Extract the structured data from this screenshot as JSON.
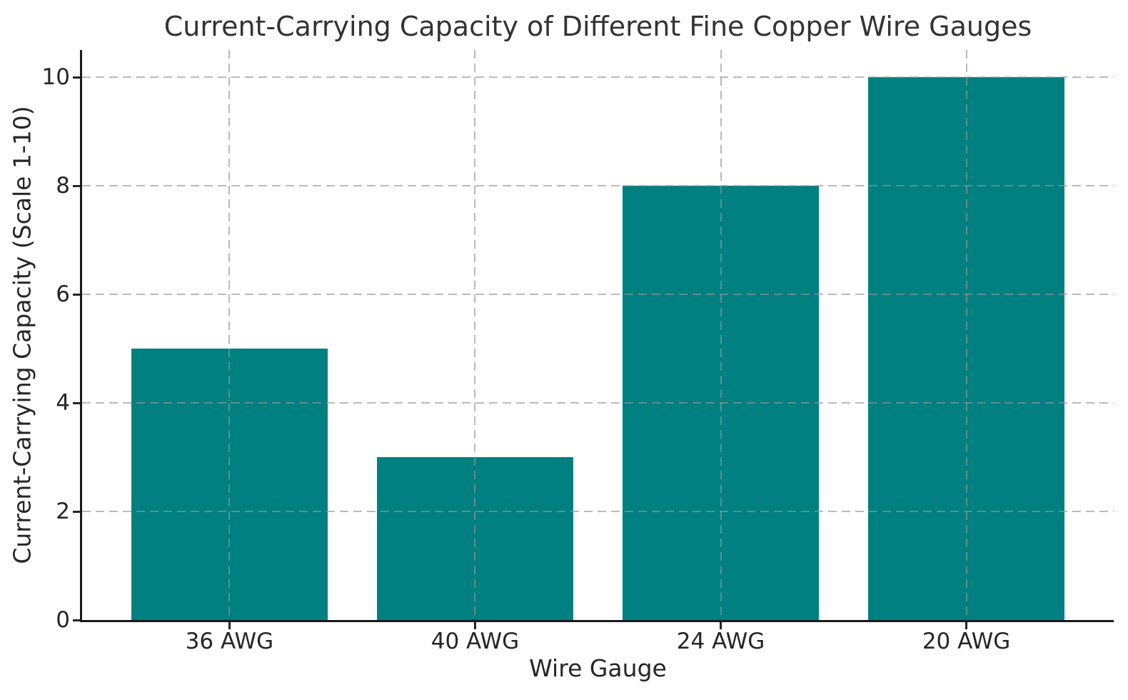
{
  "figure": {
    "background": "#ffffff",
    "text_color": "#262626",
    "title_color": "#333333"
  },
  "chart_data": {
    "type": "bar",
    "title": "Current-Carrying Capacity of Different Fine Copper Wire Gauges",
    "xlabel": "Wire Gauge",
    "ylabel": "Current-Carrying Capacity (Scale 1-10)",
    "categories": [
      "36 AWG",
      "40 AWG",
      "24 AWG",
      "20 AWG"
    ],
    "values": [
      5,
      3,
      8,
      10
    ],
    "yticks": [
      0,
      2,
      4,
      6,
      8,
      10
    ],
    "ylim": [
      0,
      10.5
    ],
    "bar_color": "#008080",
    "bar_width_fraction": 0.8,
    "grid": "on",
    "grid_style": "dashed",
    "grid_color": "#969696",
    "grid_alpha": 0.65,
    "axis_color": "#1a1a1a",
    "legend": ""
  }
}
